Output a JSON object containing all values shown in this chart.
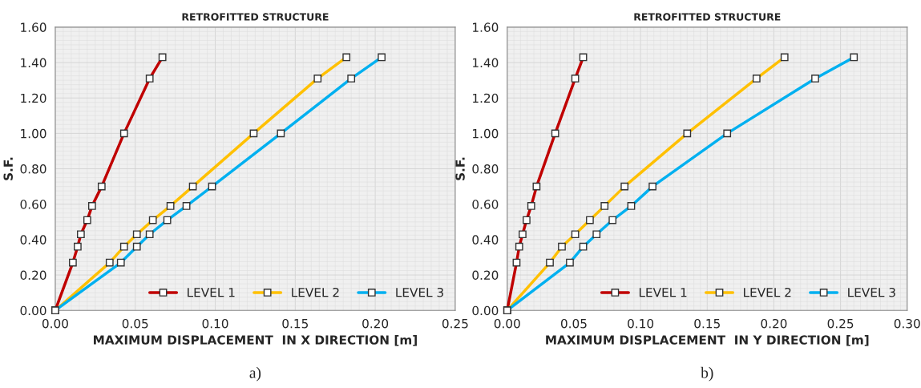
{
  "chart_data": [
    {
      "type": "line",
      "title": "RETROFITTED STRUCTURE",
      "xlabel": "MAXIMUM DISPLACEMENT  IN X DIRECTION [m]",
      "ylabel": "S.F.",
      "annotations": [
        "a)"
      ],
      "xlim": [
        0,
        0.25
      ],
      "xticks": [
        {
          "value": 0,
          "label": "0.00"
        },
        {
          "value": 0.05,
          "label": "0.05"
        },
        {
          "value": 0.1,
          "label": "0.10"
        },
        {
          "value": 0.15,
          "label": "0.15"
        },
        {
          "value": 0.2,
          "label": "0.20"
        },
        {
          "value": 0.25,
          "label": "0.25"
        }
      ],
      "ylim": [
        0,
        1.6
      ],
      "yticks": [
        {
          "value": 0,
          "label": "0.00"
        },
        {
          "value": 0.2,
          "label": "0.20"
        },
        {
          "value": 0.4,
          "label": "0.40"
        },
        {
          "value": 0.6,
          "label": "0.60"
        },
        {
          "value": 0.8,
          "label": "0.80"
        },
        {
          "value": 1.0,
          "label": "1.00"
        },
        {
          "value": 1.2,
          "label": "1.20"
        },
        {
          "value": 1.4,
          "label": "1.40"
        },
        {
          "value": 1.6,
          "label": "1.60"
        }
      ],
      "grid": true,
      "legend": "bottom right",
      "marker": "square",
      "line_style": "solid",
      "series": [
        {
          "name": "LEVEL 1",
          "color": "#c00000",
          "x": [
            0,
            0.011,
            0.014,
            0.016,
            0.02,
            0.023,
            0.029,
            0.043,
            0.059,
            0.067
          ],
          "values": [
            0,
            0.27,
            0.36,
            0.43,
            0.51,
            0.59,
            0.7,
            1.0,
            1.31,
            1.43
          ]
        },
        {
          "name": "LEVEL 2",
          "color": "#ffc000",
          "x": [
            0,
            0.034,
            0.043,
            0.051,
            0.061,
            0.072,
            0.086,
            0.124,
            0.164,
            0.182
          ],
          "values": [
            0,
            0.27,
            0.36,
            0.43,
            0.51,
            0.59,
            0.7,
            1.0,
            1.31,
            1.43
          ]
        },
        {
          "name": "LEVEL 3",
          "color": "#00b0f0",
          "x": [
            0,
            0.041,
            0.051,
            0.059,
            0.07,
            0.082,
            0.098,
            0.141,
            0.185,
            0.204
          ],
          "values": [
            0,
            0.27,
            0.36,
            0.43,
            0.51,
            0.59,
            0.7,
            1.0,
            1.31,
            1.43
          ]
        }
      ]
    },
    {
      "type": "line",
      "title": "RETROFITTED STRUCTURE",
      "xlabel": "MAXIMUM DISPLACEMENT  IN Y DIRECTION [m]",
      "ylabel": "S.F.",
      "annotations": [
        "b)"
      ],
      "xlim": [
        0,
        0.3
      ],
      "xticks": [
        {
          "value": 0,
          "label": "0.00"
        },
        {
          "value": 0.05,
          "label": "0.05"
        },
        {
          "value": 0.1,
          "label": "0.10"
        },
        {
          "value": 0.15,
          "label": "0.15"
        },
        {
          "value": 0.2,
          "label": "0.20"
        },
        {
          "value": 0.25,
          "label": "0.25"
        },
        {
          "value": 0.3,
          "label": "0.30"
        }
      ],
      "ylim": [
        0,
        1.6
      ],
      "yticks": [
        {
          "value": 0,
          "label": "0.00"
        },
        {
          "value": 0.2,
          "label": "0.20"
        },
        {
          "value": 0.4,
          "label": "0.40"
        },
        {
          "value": 0.6,
          "label": "0.60"
        },
        {
          "value": 0.8,
          "label": "0.80"
        },
        {
          "value": 1.0,
          "label": "1.00"
        },
        {
          "value": 1.2,
          "label": "1.20"
        },
        {
          "value": 1.4,
          "label": "1.40"
        },
        {
          "value": 1.6,
          "label": "1.60"
        }
      ],
      "grid": true,
      "legend": "bottom right",
      "marker": "square",
      "line_style": "solid",
      "series": [
        {
          "name": "LEVEL 1",
          "color": "#c00000",
          "x": [
            0,
            0.007,
            0.009,
            0.0115,
            0.0145,
            0.018,
            0.022,
            0.036,
            0.051,
            0.057
          ],
          "values": [
            0,
            0.27,
            0.36,
            0.43,
            0.51,
            0.59,
            0.7,
            1.0,
            1.31,
            1.43
          ]
        },
        {
          "name": "LEVEL 2",
          "color": "#ffc000",
          "x": [
            0,
            0.032,
            0.041,
            0.051,
            0.062,
            0.073,
            0.088,
            0.135,
            0.187,
            0.208
          ],
          "values": [
            0,
            0.27,
            0.36,
            0.43,
            0.51,
            0.59,
            0.7,
            1.0,
            1.31,
            1.43
          ]
        },
        {
          "name": "LEVEL 3",
          "color": "#00b0f0",
          "x": [
            0,
            0.047,
            0.057,
            0.067,
            0.079,
            0.093,
            0.109,
            0.165,
            0.231,
            0.26
          ],
          "values": [
            0,
            0.27,
            0.36,
            0.43,
            0.51,
            0.59,
            0.7,
            1.0,
            1.31,
            1.43
          ]
        }
      ]
    }
  ]
}
